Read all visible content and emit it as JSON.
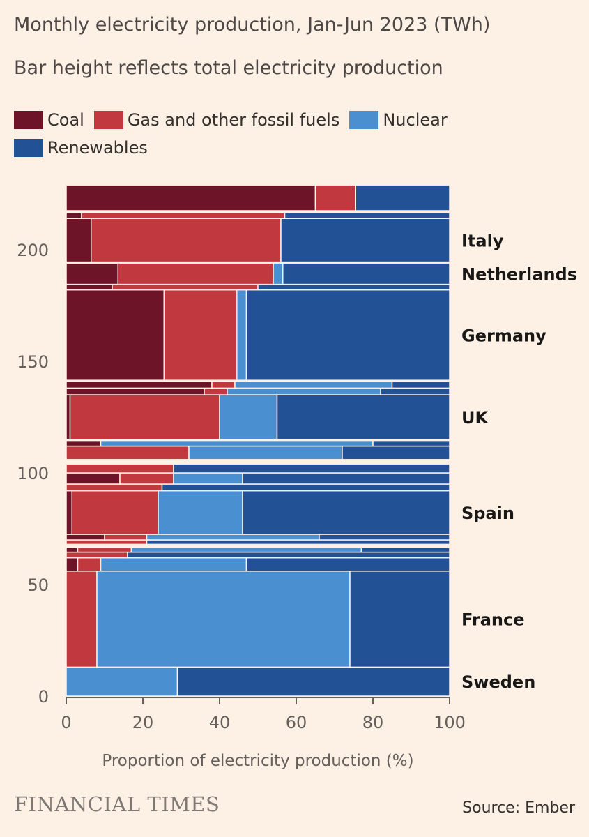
{
  "title": "Monthly electricity production, Jan-Jun 2023 (TWh)",
  "subtitle": "Bar height reflects total electricity production",
  "legend": [
    {
      "label": "Coal",
      "color": "#6e1428"
    },
    {
      "label": "Gas and other fossil fuels",
      "color": "#c2383f"
    },
    {
      "label": "Nuclear",
      "color": "#4a8fcf"
    },
    {
      "label": "Renewables",
      "color": "#235196"
    }
  ],
  "footer": {
    "brand": "FINANCIAL TIMES",
    "source": "Source: Ember"
  },
  "chart_data": {
    "type": "marimekko",
    "title": "Monthly electricity production, Jan-Jun 2023 (TWh)",
    "xlabel": "Proportion of electricity production (%)",
    "ylabel": "",
    "xlim": [
      0,
      100
    ],
    "ylim": [
      0,
      230
    ],
    "xticks": [
      "0",
      "20",
      "40",
      "60",
      "80",
      "100"
    ],
    "yticks": [
      "0",
      "50",
      "100",
      "150",
      "200"
    ],
    "categories": [
      "Coal",
      "Gas and other fossil fuels",
      "Nuclear",
      "Renewables"
    ],
    "colors": [
      "#6e1428",
      "#c2383f",
      "#4a8fcf",
      "#235196"
    ],
    "rows": [
      {
        "label": "Sweden",
        "start": 0,
        "end": 13,
        "shares": [
          0,
          0,
          29,
          71
        ]
      },
      {
        "label": "France",
        "start": 13,
        "end": 56,
        "shares": [
          0,
          8,
          66,
          26
        ]
      },
      {
        "label": "",
        "start": 56,
        "end": 62,
        "shares": [
          3,
          6,
          38,
          53
        ]
      },
      {
        "label": "",
        "start": 62,
        "end": 64.5,
        "shares": [
          0,
          16,
          0,
          84
        ]
      },
      {
        "label": "",
        "start": 64.5,
        "end": 66.5,
        "shares": [
          3,
          14,
          60,
          23
        ]
      },
      {
        "label": "",
        "start": 68,
        "end": 70,
        "shares": [
          0,
          21,
          0,
          79
        ]
      },
      {
        "label": "",
        "start": 70,
        "end": 72.5,
        "shares": [
          10,
          11,
          45,
          34
        ]
      },
      {
        "label": "Spain",
        "start": 72.5,
        "end": 92,
        "shares": [
          1.5,
          22.5,
          22,
          54
        ]
      },
      {
        "label": "",
        "start": 92,
        "end": 95,
        "shares": [
          0,
          25,
          0,
          75
        ]
      },
      {
        "label": "",
        "start": 95,
        "end": 100,
        "shares": [
          14,
          14,
          18,
          54
        ]
      },
      {
        "label": "",
        "start": 100,
        "end": 104,
        "shares": [
          0,
          28,
          0,
          72
        ]
      },
      {
        "label": "",
        "start": 106,
        "end": 112,
        "shares": [
          0,
          32,
          40,
          28
        ]
      },
      {
        "label": "",
        "start": 112,
        "end": 114.5,
        "shares": [
          9,
          0,
          71,
          20
        ]
      },
      {
        "label": "UK",
        "start": 115,
        "end": 135,
        "shares": [
          1,
          39,
          15,
          45
        ]
      },
      {
        "label": "",
        "start": 135,
        "end": 138,
        "shares": [
          36,
          6,
          40,
          18
        ]
      },
      {
        "label": "",
        "start": 138,
        "end": 141,
        "shares": [
          38,
          6,
          41,
          15
        ]
      },
      {
        "label": "Germany",
        "start": 141.5,
        "end": 182,
        "shares": [
          25.5,
          19,
          2.5,
          53
        ]
      },
      {
        "label": "",
        "start": 182,
        "end": 184.5,
        "shares": [
          12,
          38,
          0,
          50
        ]
      },
      {
        "label": "Netherlands",
        "start": 184.5,
        "end": 194,
        "shares": [
          13.5,
          40.5,
          2.5,
          43.5
        ]
      },
      {
        "label": "Italy",
        "start": 194.5,
        "end": 214,
        "shares": [
          6.5,
          49.5,
          0,
          44
        ]
      },
      {
        "label": "",
        "start": 214,
        "end": 216.5,
        "shares": [
          4,
          53,
          0,
          43
        ]
      },
      {
        "label": "",
        "start": 217.5,
        "end": 229,
        "shares": [
          65,
          10.5,
          0,
          24.5
        ]
      }
    ]
  }
}
